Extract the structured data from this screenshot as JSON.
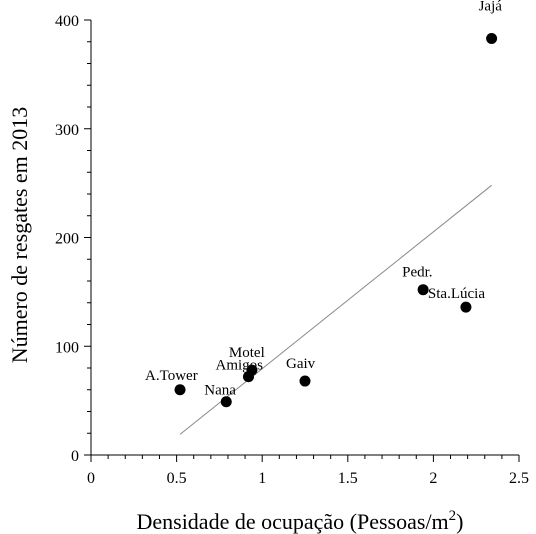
{
  "chart_data": {
    "type": "scatter",
    "xlabel": "Densidade de ocupação (Pessoas/m",
    "xlabel_sup": "2",
    "xlabel_close": ")",
    "ylabel": "Número de resgates em 2013",
    "xlim": [
      0,
      2.5
    ],
    "ylim": [
      0,
      400
    ],
    "xticks": [
      0,
      0.5,
      1,
      1.5,
      2,
      2.5
    ],
    "xtick_labels": [
      "0",
      "0.5",
      "1",
      "1.5",
      "2",
      "2.5"
    ],
    "yticks": [
      0,
      100,
      200,
      300,
      400
    ],
    "ytick_labels": [
      "0",
      "100",
      "200",
      "300",
      "400"
    ],
    "grid": false,
    "points": [
      {
        "label": "A.Tower",
        "x": 0.52,
        "y": 60
      },
      {
        "label": "Nana",
        "x": 0.79,
        "y": 49
      },
      {
        "label": "Amigos",
        "x": 0.92,
        "y": 72
      },
      {
        "label": "Motel",
        "x": 0.94,
        "y": 78
      },
      {
        "label": "Gaiv",
        "x": 1.25,
        "y": 68
      },
      {
        "label": "Pedr.",
        "x": 1.94,
        "y": 152
      },
      {
        "label": "Sta.Lúcia",
        "x": 2.19,
        "y": 136
      },
      {
        "label": "Jajá",
        "x": 2.34,
        "y": 383
      }
    ],
    "trend_line": {
      "x": [
        0.52,
        2.34
      ],
      "y": [
        19,
        248
      ]
    },
    "colors": {
      "marker": "#000000",
      "trend": "#888888",
      "axis": "#000000"
    }
  }
}
